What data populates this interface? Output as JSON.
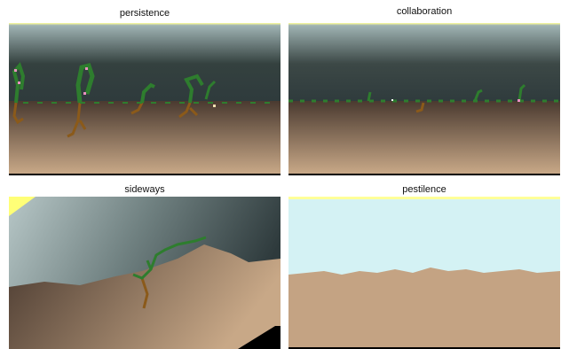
{
  "panels": [
    {
      "id": "persistence",
      "title": "persistence"
    },
    {
      "id": "collaboration",
      "title": "collaboration"
    },
    {
      "id": "sideways",
      "title": "sideways"
    },
    {
      "id": "pestilence",
      "title": "pestilence"
    }
  ],
  "colors": {
    "sky_top": "#ffff99",
    "sky": "#8fa3a4",
    "sky_dark": "#2e3a3c",
    "ground_dark": "#4a3a30",
    "ground_light": "#c8a887",
    "root": "#8b5a1a",
    "leaf": "#2e7d2e",
    "flower": "#e890c0",
    "pestilence_sky": "#d4f2f4",
    "pestilence_ground": "#c4a383"
  }
}
